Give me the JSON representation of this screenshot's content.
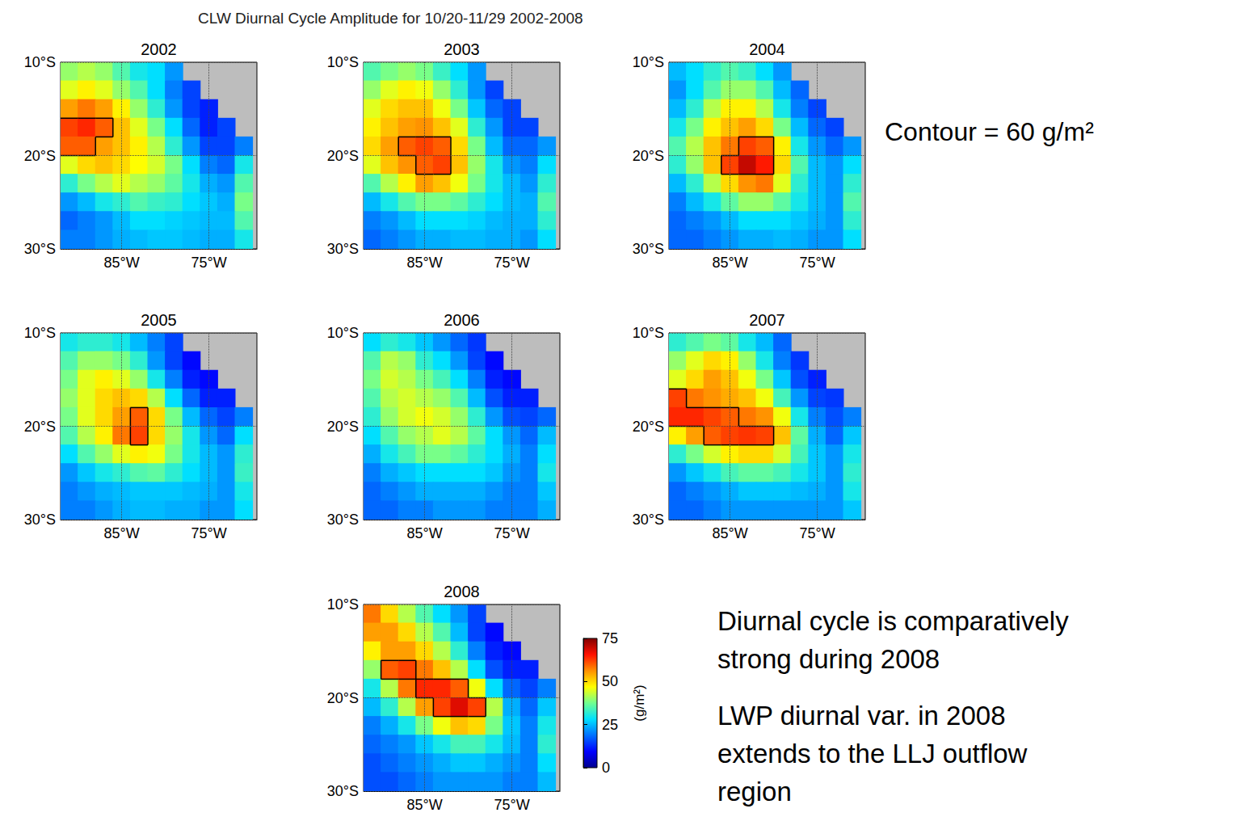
{
  "title": "CLW Diurnal Cycle Amplitude for 10/20-11/29 2002-2008",
  "contour_level": 60,
  "colorbar": {
    "label": "(g/m²)",
    "lim": [
      0,
      75
    ],
    "ticks": [
      0,
      25,
      50,
      75
    ]
  },
  "annotations": [
    {
      "text": [
        "Contour = 60 g/m²"
      ]
    },
    {
      "text": [
        "Diurnal cycle is comparatively",
        "strong during 2008"
      ]
    },
    {
      "text": [
        "LWP diurnal var. in 2008",
        "extends to the LLJ outflow",
        "region"
      ]
    }
  ],
  "chart_data": [
    {
      "type": "heatmap",
      "title": "2002",
      "x": [
        -91,
        -89,
        -87,
        -85,
        -83,
        -81,
        -79,
        -77,
        -75,
        -73,
        -71
      ],
      "y": [
        -11,
        -13,
        -15,
        -17,
        -19,
        -21,
        -23,
        -25,
        -27,
        -29
      ],
      "xlim": [
        -92,
        -69.5
      ],
      "ylim": [
        -30,
        -10
      ],
      "xticks": [
        {
          "value": -85,
          "label": "85°W"
        },
        {
          "value": -75,
          "label": "75°W"
        }
      ],
      "yticks": [
        {
          "value": -30,
          "label": "30°S"
        },
        {
          "value": -20,
          "label": "20°S"
        },
        {
          "value": -10,
          "label": "10°S"
        }
      ],
      "grid": true,
      "cells": [
        [
          40,
          42,
          40,
          35,
          30,
          28,
          22,
          null,
          null,
          null,
          null
        ],
        [
          45,
          48,
          45,
          40,
          35,
          28,
          20,
          15,
          null,
          null,
          null
        ],
        [
          55,
          58,
          55,
          48,
          40,
          32,
          22,
          15,
          12,
          null,
          null
        ],
        [
          62,
          64,
          60,
          52,
          45,
          38,
          28,
          18,
          12,
          15,
          null
        ],
        [
          60,
          60,
          55,
          52,
          48,
          42,
          32,
          22,
          15,
          15,
          20
        ],
        [
          45,
          50,
          52,
          50,
          47,
          44,
          38,
          28,
          20,
          18,
          30
        ],
        [
          32,
          38,
          42,
          45,
          42,
          40,
          36,
          30,
          24,
          22,
          35
        ],
        [
          22,
          25,
          30,
          32,
          35,
          33,
          32,
          28,
          26,
          24,
          38
        ],
        [
          18,
          20,
          22,
          25,
          28,
          28,
          27,
          26,
          25,
          25,
          35
        ],
        [
          20,
          20,
          22,
          24,
          25,
          26,
          26,
          25,
          24,
          24,
          30
        ]
      ]
    },
    {
      "type": "heatmap",
      "title": "2003",
      "x": [
        -91,
        -89,
        -87,
        -85,
        -83,
        -81,
        -79,
        -77,
        -75,
        -73,
        -71
      ],
      "y": [
        -11,
        -13,
        -15,
        -17,
        -19,
        -21,
        -23,
        -25,
        -27,
        -29
      ],
      "xlim": [
        -92,
        -69.5
      ],
      "ylim": [
        -30,
        -10
      ],
      "xticks": [
        {
          "value": -85,
          "label": "85°W"
        },
        {
          "value": -75,
          "label": "75°W"
        }
      ],
      "yticks": [
        {
          "value": -30,
          "label": "30°S"
        },
        {
          "value": -20,
          "label": "20°S"
        },
        {
          "value": -10,
          "label": "10°S"
        }
      ],
      "grid": true,
      "cells": [
        [
          35,
          38,
          40,
          38,
          33,
          28,
          22,
          null,
          null,
          null,
          null
        ],
        [
          40,
          45,
          48,
          46,
          40,
          32,
          22,
          15,
          null,
          null,
          null
        ],
        [
          45,
          50,
          52,
          52,
          46,
          38,
          26,
          18,
          15,
          null,
          null
        ],
        [
          48,
          52,
          55,
          56,
          52,
          45,
          32,
          22,
          15,
          15,
          null
        ],
        [
          50,
          55,
          60,
          62,
          60,
          50,
          38,
          25,
          18,
          18,
          22
        ],
        [
          45,
          52,
          56,
          60,
          62,
          52,
          40,
          30,
          22,
          20,
          28
        ],
        [
          35,
          42,
          48,
          55,
          52,
          46,
          38,
          30,
          25,
          22,
          32
        ],
        [
          25,
          30,
          35,
          38,
          38,
          36,
          32,
          28,
          25,
          24,
          35
        ],
        [
          20,
          22,
          25,
          28,
          28,
          28,
          27,
          25,
          24,
          24,
          32
        ],
        [
          18,
          20,
          22,
          24,
          24,
          25,
          25,
          24,
          24,
          22,
          28
        ]
      ]
    },
    {
      "type": "heatmap",
      "title": "2004",
      "x": [
        -91,
        -89,
        -87,
        -85,
        -83,
        -81,
        -79,
        -77,
        -75,
        -73,
        -71
      ],
      "y": [
        -11,
        -13,
        -15,
        -17,
        -19,
        -21,
        -23,
        -25,
        -27,
        -29
      ],
      "xlim": [
        -92,
        -69.5
      ],
      "ylim": [
        -30,
        -10
      ],
      "xticks": [
        {
          "value": -85,
          "label": "85°W"
        },
        {
          "value": -75,
          "label": "75°W"
        }
      ],
      "yticks": [
        {
          "value": -30,
          "label": "30°S"
        },
        {
          "value": -20,
          "label": "20°S"
        },
        {
          "value": -10,
          "label": "10°S"
        }
      ],
      "grid": true,
      "cells": [
        [
          25,
          28,
          32,
          35,
          33,
          28,
          22,
          null,
          null,
          null,
          null
        ],
        [
          22,
          28,
          35,
          40,
          40,
          35,
          25,
          18,
          null,
          null,
          null
        ],
        [
          25,
          32,
          42,
          48,
          48,
          42,
          30,
          20,
          15,
          null,
          null
        ],
        [
          30,
          38,
          48,
          52,
          55,
          50,
          38,
          25,
          18,
          15,
          null
        ],
        [
          35,
          42,
          52,
          58,
          62,
          60,
          48,
          30,
          22,
          18,
          22
        ],
        [
          32,
          40,
          52,
          62,
          70,
          65,
          50,
          35,
          25,
          22,
          28
        ],
        [
          25,
          32,
          42,
          50,
          56,
          58,
          45,
          32,
          25,
          22,
          32
        ],
        [
          20,
          25,
          30,
          36,
          40,
          40,
          36,
          30,
          25,
          22,
          35
        ],
        [
          18,
          20,
          22,
          25,
          28,
          28,
          28,
          26,
          24,
          22,
          32
        ],
        [
          18,
          18,
          20,
          22,
          24,
          24,
          25,
          24,
          22,
          22,
          28
        ]
      ]
    },
    {
      "type": "heatmap",
      "title": "2005",
      "x": [
        -91,
        -89,
        -87,
        -85,
        -83,
        -81,
        -79,
        -77,
        -75,
        -73,
        -71
      ],
      "y": [
        -11,
        -13,
        -15,
        -17,
        -19,
        -21,
        -23,
        -25,
        -27,
        -29
      ],
      "xlim": [
        -92,
        -69.5
      ],
      "ylim": [
        -30,
        -10
      ],
      "xticks": [
        {
          "value": -85,
          "label": "85°W"
        },
        {
          "value": -75,
          "label": "75°W"
        }
      ],
      "yticks": [
        {
          "value": -30,
          "label": "30°S"
        },
        {
          "value": -20,
          "label": "20°S"
        },
        {
          "value": -10,
          "label": "10°S"
        }
      ],
      "grid": true,
      "cells": [
        [
          30,
          32,
          32,
          30,
          25,
          20,
          15,
          null,
          null,
          null,
          null
        ],
        [
          35,
          40,
          40,
          38,
          32,
          22,
          15,
          10,
          null,
          null,
          null
        ],
        [
          38,
          45,
          48,
          45,
          40,
          30,
          20,
          12,
          10,
          null,
          null
        ],
        [
          40,
          45,
          50,
          52,
          50,
          42,
          28,
          18,
          12,
          12,
          null
        ],
        [
          38,
          45,
          50,
          55,
          60,
          50,
          38,
          25,
          18,
          15,
          20
        ],
        [
          35,
          42,
          48,
          58,
          62,
          50,
          40,
          30,
          22,
          18,
          28
        ],
        [
          28,
          35,
          40,
          45,
          48,
          46,
          38,
          30,
          25,
          22,
          32
        ],
        [
          22,
          26,
          30,
          32,
          35,
          36,
          32,
          28,
          25,
          22,
          33
        ],
        [
          20,
          22,
          24,
          25,
          26,
          26,
          26,
          25,
          24,
          22,
          30
        ],
        [
          20,
          20,
          22,
          24,
          25,
          25,
          24,
          24,
          22,
          22,
          28
        ]
      ]
    },
    {
      "type": "heatmap",
      "title": "2006",
      "x": [
        -91,
        -89,
        -87,
        -85,
        -83,
        -81,
        -79,
        -77,
        -75,
        -73,
        -71
      ],
      "y": [
        -11,
        -13,
        -15,
        -17,
        -19,
        -21,
        -23,
        -25,
        -27,
        -29
      ],
      "xlim": [
        -92,
        -69.5
      ],
      "ylim": [
        -30,
        -10
      ],
      "xticks": [
        {
          "value": -85,
          "label": "85°W"
        },
        {
          "value": -75,
          "label": "75°W"
        }
      ],
      "yticks": [
        {
          "value": -30,
          "label": "30°S"
        },
        {
          "value": -20,
          "label": "20°S"
        },
        {
          "value": -10,
          "label": "10°S"
        }
      ],
      "grid": true,
      "cells": [
        [
          28,
          32,
          30,
          26,
          22,
          18,
          14,
          null,
          null,
          null,
          null
        ],
        [
          35,
          42,
          40,
          32,
          28,
          22,
          15,
          10,
          null,
          null,
          null
        ],
        [
          38,
          44,
          42,
          38,
          34,
          28,
          20,
          12,
          10,
          null,
          null
        ],
        [
          35,
          42,
          44,
          42,
          40,
          35,
          25,
          16,
          12,
          12,
          null
        ],
        [
          32,
          40,
          44,
          46,
          44,
          40,
          32,
          22,
          16,
          15,
          18
        ],
        [
          28,
          35,
          40,
          42,
          45,
          42,
          36,
          28,
          22,
          18,
          25
        ],
        [
          24,
          30,
          34,
          38,
          38,
          36,
          32,
          28,
          24,
          20,
          28
        ],
        [
          20,
          24,
          26,
          28,
          28,
          28,
          28,
          26,
          22,
          20,
          30
        ],
        [
          18,
          20,
          22,
          24,
          24,
          24,
          24,
          22,
          20,
          20,
          26
        ],
        [
          18,
          18,
          20,
          20,
          22,
          22,
          22,
          20,
          20,
          20,
          24
        ]
      ]
    },
    {
      "type": "heatmap",
      "title": "2007",
      "x": [
        -91,
        -89,
        -87,
        -85,
        -83,
        -81,
        -79,
        -77,
        -75,
        -73,
        -71
      ],
      "y": [
        -11,
        -13,
        -15,
        -17,
        -19,
        -21,
        -23,
        -25,
        -27,
        -29
      ],
      "xlim": [
        -92,
        -69.5
      ],
      "ylim": [
        -30,
        -10
      ],
      "xticks": [
        {
          "value": -85,
          "label": "85°W"
        },
        {
          "value": -75,
          "label": "75°W"
        }
      ],
      "yticks": [
        {
          "value": -30,
          "label": "30°S"
        },
        {
          "value": -20,
          "label": "20°S"
        },
        {
          "value": -10,
          "label": "10°S"
        }
      ],
      "grid": true,
      "cells": [
        [
          32,
          35,
          38,
          36,
          30,
          25,
          18,
          null,
          null,
          null,
          null
        ],
        [
          40,
          45,
          50,
          48,
          40,
          30,
          20,
          14,
          null,
          null,
          null
        ],
        [
          45,
          50,
          55,
          52,
          46,
          38,
          26,
          16,
          12,
          null,
          null
        ],
        [
          62,
          58,
          56,
          54,
          52,
          46,
          34,
          22,
          15,
          14,
          null
        ],
        [
          64,
          64,
          62,
          60,
          58,
          56,
          46,
          30,
          20,
          16,
          20
        ],
        [
          48,
          55,
          60,
          62,
          63,
          62,
          52,
          36,
          24,
          18,
          26
        ],
        [
          32,
          38,
          44,
          48,
          50,
          50,
          44,
          34,
          26,
          22,
          30
        ],
        [
          22,
          26,
          30,
          34,
          36,
          36,
          34,
          30,
          26,
          22,
          32
        ],
        [
          18,
          20,
          22,
          24,
          26,
          26,
          26,
          25,
          24,
          22,
          30
        ],
        [
          18,
          18,
          20,
          22,
          22,
          22,
          22,
          22,
          22,
          22,
          26
        ]
      ]
    },
    {
      "type": "heatmap",
      "title": "2008",
      "x": [
        -91,
        -89,
        -87,
        -85,
        -83,
        -81,
        -79,
        -77,
        -75,
        -73,
        -71
      ],
      "y": [
        -11,
        -13,
        -15,
        -17,
        -19,
        -21,
        -23,
        -25,
        -27,
        -29
      ],
      "xlim": [
        -92,
        -69.5
      ],
      "ylim": [
        -30,
        -10
      ],
      "xticks": [
        {
          "value": -85,
          "label": "85°W"
        },
        {
          "value": -75,
          "label": "75°W"
        }
      ],
      "yticks": [
        {
          "value": -30,
          "label": "30°S"
        },
        {
          "value": -20,
          "label": "20°S"
        },
        {
          "value": -10,
          "label": "10°S"
        }
      ],
      "grid": true,
      "cells": [
        [
          58,
          50,
          42,
          35,
          28,
          22,
          15,
          null,
          null,
          null,
          null
        ],
        [
          55,
          55,
          50,
          42,
          35,
          25,
          15,
          10,
          null,
          null,
          null
        ],
        [
          48,
          55,
          55,
          50,
          42,
          32,
          20,
          12,
          10,
          null,
          null
        ],
        [
          40,
          60,
          62,
          58,
          52,
          42,
          28,
          16,
          12,
          12,
          null
        ],
        [
          30,
          42,
          58,
          64,
          64,
          60,
          46,
          28,
          18,
          15,
          20
        ],
        [
          25,
          32,
          42,
          55,
          62,
          68,
          62,
          42,
          24,
          18,
          26
        ],
        [
          20,
          24,
          30,
          38,
          46,
          52,
          50,
          38,
          26,
          20,
          30
        ],
        [
          18,
          20,
          22,
          26,
          30,
          34,
          34,
          30,
          25,
          20,
          32
        ],
        [
          16,
          18,
          20,
          22,
          24,
          26,
          26,
          24,
          22,
          20,
          28
        ],
        [
          16,
          16,
          18,
          20,
          22,
          22,
          22,
          22,
          20,
          20,
          25
        ]
      ]
    }
  ]
}
